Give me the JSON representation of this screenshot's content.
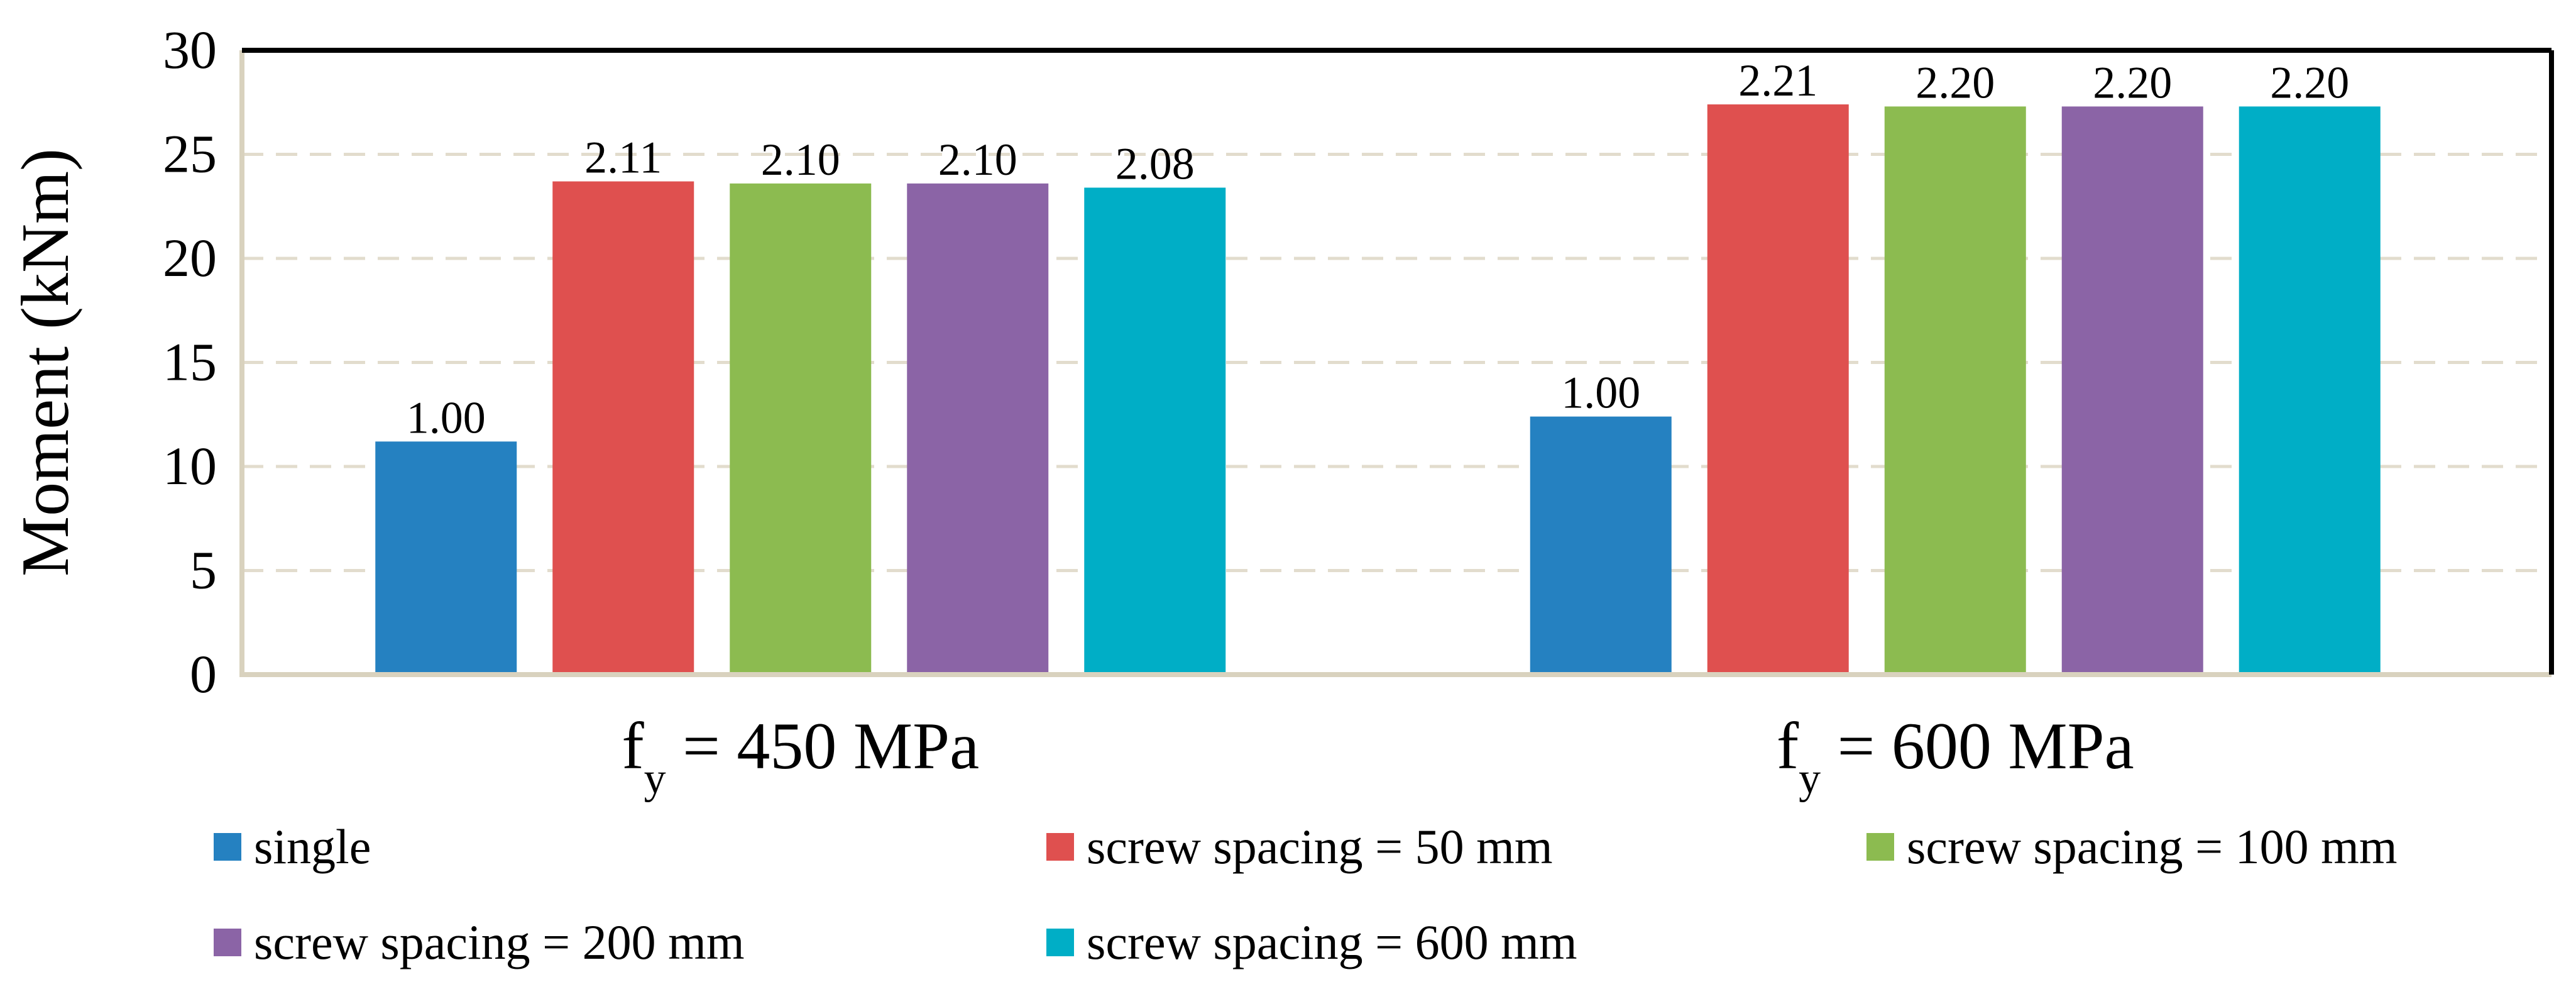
{
  "chart_data": {
    "type": "bar",
    "title": "",
    "xlabel": "",
    "ylabel": "Moment (kNm)",
    "ylim": [
      0,
      30
    ],
    "yticks": [
      0,
      5,
      10,
      15,
      20,
      25,
      30
    ],
    "grid": true,
    "legend_position": "bottom",
    "categories": [
      {
        "base": "f",
        "sub": "y",
        "rest": " = 450 MPa"
      },
      {
        "base": "f",
        "sub": "y",
        "rest": " = 600 MPa"
      }
    ],
    "series": [
      {
        "name": "single",
        "color": "#2581C1",
        "values": [
          11.2,
          12.4
        ],
        "labels": [
          "1.00",
          "1.00"
        ]
      },
      {
        "name": "screw spacing = 50 mm",
        "color": "#DF504F",
        "values": [
          23.7,
          27.4
        ],
        "labels": [
          "2.11",
          "2.21"
        ]
      },
      {
        "name": "screw spacing = 100 mm",
        "color": "#8CBB50",
        "values": [
          23.6,
          27.3
        ],
        "labels": [
          "2.10",
          "2.20"
        ]
      },
      {
        "name": "screw spacing = 200 mm",
        "color": "#8B64A6",
        "values": [
          23.6,
          27.3
        ],
        "labels": [
          "2.10",
          "2.20"
        ]
      },
      {
        "name": "screw spacing = 600 mm",
        "color": "#00AEC6",
        "values": [
          23.4,
          27.3
        ],
        "labels": [
          "2.08",
          "2.20"
        ]
      }
    ]
  }
}
